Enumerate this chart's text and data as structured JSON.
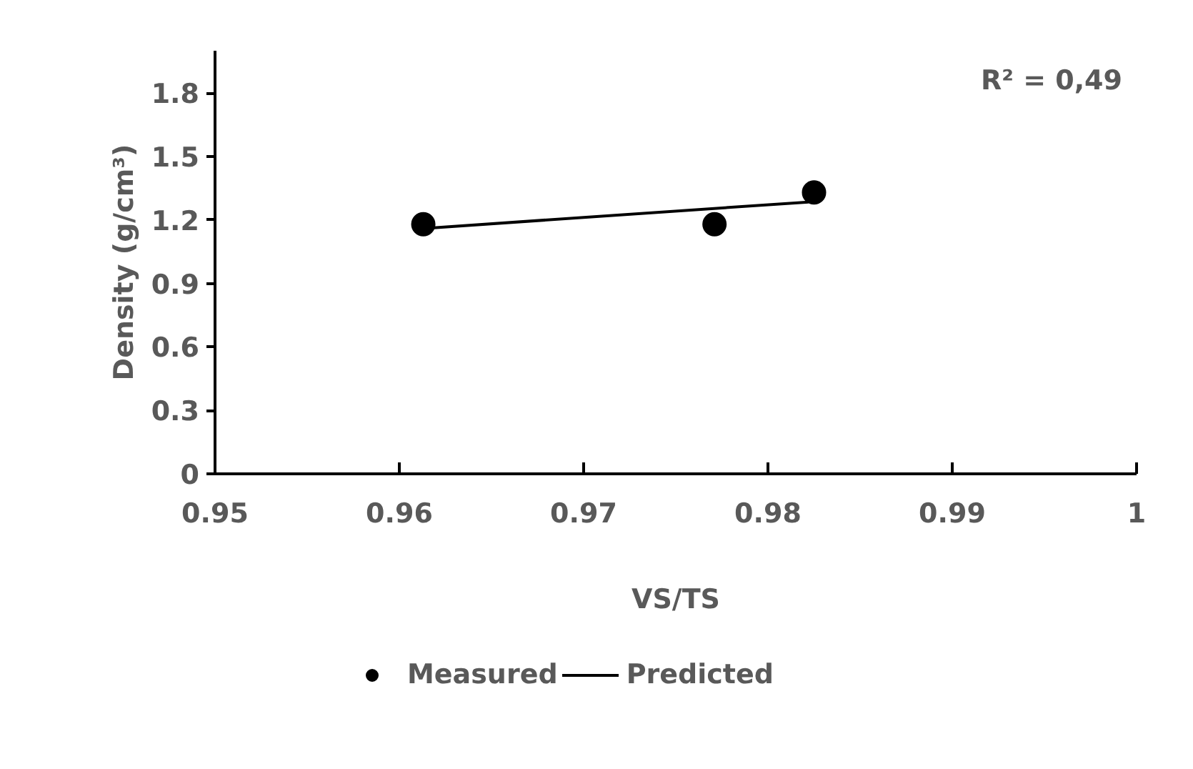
{
  "chart_data": {
    "type": "scatter",
    "xlabel": "VS/TS",
    "ylabel": "Density (g/cm³)",
    "series": [
      {
        "name": "Measured",
        "marker": "circle",
        "color": "#000000",
        "x": [
          0.9613,
          0.9771,
          0.9825
        ],
        "values": [
          1.18,
          1.18,
          1.33
        ]
      },
      {
        "name": "Predicted",
        "type": "line",
        "marker": "none",
        "color": "#000000",
        "x": [
          0.9613,
          0.9822
        ],
        "values": [
          1.16,
          1.285
        ]
      }
    ],
    "xlim": [
      0.95,
      1
    ],
    "xticks": [
      0.95,
      0.96,
      0.97,
      0.98,
      0.99,
      1
    ],
    "ylim": [
      0,
      2
    ],
    "yticks": [
      0,
      0.3,
      0.6,
      0.9,
      1.2,
      1.5,
      1.8
    ],
    "annotations": [
      "R² = 0,49"
    ],
    "grid": false,
    "legend": "bottom",
    "line_style": "solid"
  }
}
